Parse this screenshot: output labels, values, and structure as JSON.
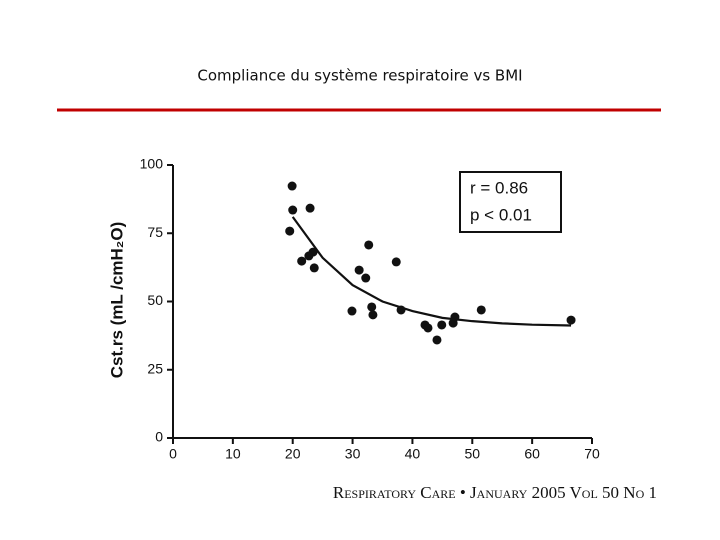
{
  "slide_title": "Compliance du système respiratoire vs BMI",
  "chart_data": {
    "type": "scatter",
    "ylabel": "Cst.rs (mL /cmH₂O)",
    "xlim": [
      0,
      70
    ],
    "ylim": [
      0,
      100
    ],
    "xticks": [
      0,
      10,
      20,
      30,
      40,
      50,
      60,
      70
    ],
    "yticks": [
      0,
      25,
      50,
      75,
      100
    ],
    "color": "#111111",
    "x": [
      19.9,
      20.0,
      22.9,
      19.5,
      32.7,
      23.4,
      22.7,
      21.5,
      23.6,
      31.1,
      32.2,
      37.3,
      29.9,
      33.2,
      33.4,
      38.1,
      42.1,
      42.6,
      44.9,
      44.1,
      47.1,
      46.8,
      51.5,
      66.5
    ],
    "values": [
      92.3,
      83.5,
      84.2,
      75.8,
      70.7,
      68.1,
      66.7,
      64.8,
      62.3,
      61.5,
      58.6,
      64.5,
      46.5,
      48.0,
      45.1,
      46.9,
      41.4,
      40.3,
      41.4,
      35.9,
      44.3,
      42.1,
      46.9,
      43.2
    ],
    "fit": {
      "x": [
        20,
        25,
        30,
        35,
        40,
        45,
        50,
        55,
        60,
        66.5
      ],
      "values": [
        81,
        66,
        56,
        50,
        46.5,
        44,
        42.8,
        42,
        41.5,
        41.2
      ]
    },
    "annotations": [
      "r = 0.86",
      "p < 0.01"
    ]
  },
  "source": "Respiratory Care • January 2005 Vol 50 No 1"
}
